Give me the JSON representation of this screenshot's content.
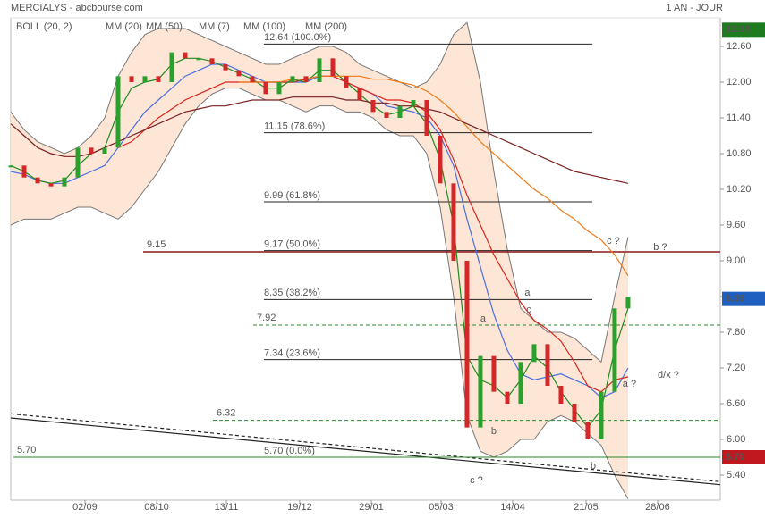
{
  "chart_data": {
    "type": "stock",
    "title": "MERCIALYS - abcbourse.com",
    "period": "1 AN - JOUR",
    "xlim": [
      0,
      52.87
    ],
    "ylim": [
      4.98,
      13.08
    ],
    "xticks": [
      {
        "value": 5.53,
        "label": "02/09"
      },
      {
        "value": 10.87,
        "label": "08/10"
      },
      {
        "value": 16.07,
        "label": "13/11"
      },
      {
        "value": 21.53,
        "label": "19/12"
      },
      {
        "value": 26.87,
        "label": "29/01"
      },
      {
        "value": 32.07,
        "label": "05/03"
      },
      {
        "value": 37.4,
        "label": "14/04"
      },
      {
        "value": 42.87,
        "label": "21/05"
      },
      {
        "value": 48.2,
        "label": "28/06"
      }
    ],
    "yticks": [
      {
        "value": 12.6,
        "label": "12.60"
      },
      {
        "value": 12,
        "label": "12.00"
      },
      {
        "value": 11.4,
        "label": "11.40"
      },
      {
        "value": 10.8,
        "label": "10.80"
      },
      {
        "value": 10.2,
        "label": "10.20"
      },
      {
        "value": 9.6,
        "label": "9.60"
      },
      {
        "value": 9,
        "label": "9.00"
      },
      {
        "value": 8.4,
        "label": "8.40"
      },
      {
        "value": 7.8,
        "label": "7.80"
      },
      {
        "value": 7.2,
        "label": "7.20"
      },
      {
        "value": 6.6,
        "label": "6.60"
      },
      {
        "value": 6,
        "label": "6.00"
      },
      {
        "value": 5.4,
        "label": "5.40"
      }
    ],
    "values": [
      10.6,
      10.4,
      10.3,
      10.25,
      10.4,
      10.9,
      10.8,
      10.9,
      12.1,
      12.0,
      12.1,
      12.0,
      12.5,
      12.4,
      12.4,
      12.3,
      12.2,
      12.1,
      12.0,
      11.8,
      12.0,
      12.1,
      12.0,
      12.4,
      12.1,
      11.9,
      11.7,
      11.5,
      11.4,
      11.6,
      11.7,
      11.1,
      10.3,
      9.0,
      6.2,
      7.4,
      6.8,
      6.6,
      7.3,
      7.6,
      6.9,
      6.6,
      6.3,
      6.0,
      6.8,
      8.2,
      8.4
    ],
    "up_color": "#2ca02c",
    "down_color": "#d62728",
    "bollinger": {
      "name": "BOLL (20, 2)",
      "color": "#333333",
      "fill": "#fde6d6",
      "upper": [
        11.5,
        11.2,
        11.0,
        10.9,
        10.8,
        10.9,
        11.1,
        11.4,
        12.1,
        12.5,
        12.8,
        12.9,
        12.9,
        12.9,
        12.8,
        12.7,
        12.6,
        12.5,
        12.4,
        12.3,
        12.3,
        12.4,
        12.5,
        12.6,
        12.6,
        12.5,
        12.3,
        12.2,
        12.1,
        12.0,
        11.9,
        12.0,
        12.3,
        12.8,
        13.0,
        12.0,
        10.5,
        9.2,
        8.2,
        8.0,
        7.8,
        7.8,
        7.7,
        7.5,
        7.3,
        8.4,
        9.4
      ],
      "lower": [
        9.6,
        9.7,
        9.7,
        9.7,
        9.8,
        9.9,
        9.9,
        9.8,
        9.7,
        9.9,
        10.2,
        10.5,
        10.9,
        11.3,
        11.6,
        11.8,
        11.9,
        11.9,
        11.8,
        11.7,
        11.7,
        11.6,
        11.5,
        11.6,
        11.6,
        11.5,
        11.5,
        11.4,
        11.2,
        11.1,
        11.1,
        10.8,
        9.9,
        8.4,
        6.4,
        5.8,
        5.7,
        5.8,
        6.0,
        6.0,
        6.3,
        6.4,
        6.3,
        6.1,
        5.9,
        5.4,
        5.0
      ]
    },
    "series": [
      {
        "name": "MM (20)",
        "color": "#4a6fe0",
        "values": [
          10.5,
          10.45,
          10.35,
          10.3,
          10.3,
          10.4,
          10.5,
          10.6,
          10.9,
          11.2,
          11.5,
          11.7,
          11.9,
          12.1,
          12.2,
          12.3,
          12.3,
          12.2,
          12.1,
          12.0,
          12.0,
          12.0,
          12.0,
          12.1,
          12.1,
          12.0,
          11.9,
          11.8,
          11.6,
          11.55,
          11.5,
          11.4,
          11.1,
          10.6,
          9.7,
          8.9,
          8.1,
          7.5,
          7.1,
          7.0,
          7.05,
          7.1,
          7.0,
          6.9,
          6.7,
          6.8,
          7.2
        ]
      },
      {
        "name": "MM (50)",
        "color": "#d9241c",
        "values": [
          null,
          null,
          null,
          null,
          null,
          null,
          null,
          null,
          10.9,
          11.0,
          11.2,
          11.4,
          11.55,
          11.7,
          11.8,
          11.9,
          12.0,
          12.0,
          12.0,
          12.0,
          12.0,
          12.0,
          12.05,
          12.1,
          12.1,
          12.0,
          11.9,
          11.8,
          11.7,
          11.7,
          11.65,
          11.5,
          11.2,
          10.7,
          10.1,
          9.6,
          9.1,
          8.7,
          8.3,
          8.0,
          7.85,
          7.65,
          7.3,
          6.9,
          6.8,
          7.0,
          7.05
        ]
      },
      {
        "name": "MM (7)",
        "color": "#1f8a1f",
        "values": [
          10.6,
          10.5,
          10.35,
          10.3,
          10.35,
          10.6,
          10.8,
          10.9,
          11.5,
          11.9,
          12.0,
          12.05,
          12.3,
          12.4,
          12.4,
          12.35,
          12.25,
          12.15,
          12.05,
          11.9,
          11.9,
          12.05,
          12.0,
          12.2,
          12.2,
          12.0,
          11.8,
          11.6,
          11.45,
          11.5,
          11.6,
          11.3,
          10.7,
          9.6,
          7.4,
          7.0,
          6.9,
          6.7,
          7.0,
          7.4,
          7.2,
          6.8,
          6.5,
          6.2,
          6.5,
          7.5,
          8.2
        ]
      },
      {
        "name": "MM (100)",
        "color": "#f07a18",
        "values": [
          null,
          null,
          null,
          null,
          null,
          null,
          null,
          null,
          null,
          null,
          null,
          null,
          null,
          null,
          null,
          null,
          null,
          12.0,
          12.0,
          12.0,
          12.0,
          12.05,
          12.05,
          12.1,
          12.1,
          12.1,
          12.1,
          12.05,
          12.05,
          12.0,
          11.95,
          11.85,
          11.7,
          11.5,
          11.25,
          11.0,
          10.8,
          10.6,
          10.4,
          10.2,
          10.05,
          9.85,
          9.7,
          9.5,
          9.35,
          9.1,
          8.75
        ]
      },
      {
        "name": "MM (200)",
        "color": "#7a2020",
        "values": [
          11.3,
          11.1,
          10.9,
          10.8,
          10.75,
          10.75,
          10.8,
          10.9,
          11.0,
          11.1,
          11.2,
          11.3,
          11.4,
          11.5,
          11.55,
          11.6,
          11.6,
          11.65,
          11.7,
          11.7,
          11.7,
          11.75,
          11.75,
          11.75,
          11.75,
          11.7,
          11.7,
          11.65,
          11.65,
          11.6,
          11.6,
          11.55,
          11.5,
          11.4,
          11.3,
          11.2,
          11.1,
          11.0,
          10.9,
          10.8,
          10.7,
          10.6,
          10.5,
          10.45,
          10.4,
          10.35,
          10.3
        ]
      }
    ],
    "fibonacci": [
      {
        "value": 12.64,
        "label": "12.64  (100.0%)"
      },
      {
        "value": 11.15,
        "label": "11.15  (78.6%)"
      },
      {
        "value": 9.99,
        "label": "9.99  (61.8%)"
      },
      {
        "value": 9.17,
        "label": "9.17  (50.0%)"
      },
      {
        "value": 8.35,
        "label": "8.35  (38.2%)"
      },
      {
        "value": 7.34,
        "label": "7.34  (23.6%)"
      },
      {
        "value": 5.7,
        "label": "5.70  (0.0%)"
      }
    ],
    "levels": [
      {
        "value": 9.15,
        "label": "9.15",
        "color": "#8b1a1a",
        "dashed": false
      },
      {
        "value": 7.92,
        "label": "7.92",
        "color": "#2a8a2a",
        "dashed": true
      },
      {
        "value": 6.32,
        "label": "6.32",
        "color": "#2a8a2a",
        "dashed": true
      },
      {
        "value": 5.7,
        "label": "5.70",
        "color": "#2a8a2a",
        "dashed": false
      }
    ],
    "price_badges": [
      {
        "value": 12.88,
        "label": "12.88",
        "color": "#1e7b1e"
      },
      {
        "value": 8.36,
        "label": "8.36",
        "color": "#1f5fbf"
      },
      {
        "value": 5.7,
        "label": "5.70",
        "color": "#c0181e"
      }
    ],
    "trendlines": [
      {
        "x": [
          0,
          52.87
        ],
        "values": [
          6.36,
          5.24
        ],
        "dashed": false
      },
      {
        "x": [
          0,
          52.87
        ],
        "values": [
          6.43,
          5.29
        ],
        "dashed": true
      }
    ],
    "annotations": [
      {
        "text": "c ?",
        "x": 44.9,
        "y": 9.33,
        "color": "#1a1a8a"
      },
      {
        "text": "b ?",
        "x": 48.4,
        "y": 9.22,
        "color": "#a02020"
      },
      {
        "text": "a",
        "x": 38.5,
        "y": 8.46,
        "color": "#1a1a8a"
      },
      {
        "text": "c",
        "x": 38.6,
        "y": 8.17,
        "color": "#1a1a8a"
      },
      {
        "text": "a",
        "x": 35.2,
        "y": 8.02,
        "color": "#1a1a8a"
      },
      {
        "text": "b",
        "x": 36.0,
        "y": 6.13,
        "color": "#1a1a8a"
      },
      {
        "text": "d/x ?",
        "x": 49.0,
        "y": 7.08,
        "color": "#1a1a8a"
      },
      {
        "text": "a ?",
        "x": 46.1,
        "y": 6.93,
        "color": "#a02020"
      },
      {
        "text": "c ?",
        "x": 34.7,
        "y": 5.31,
        "color": "#a02020"
      },
      {
        "text": "b",
        "x": 43.4,
        "y": 5.55,
        "color": "#1a1a8a"
      }
    ]
  }
}
